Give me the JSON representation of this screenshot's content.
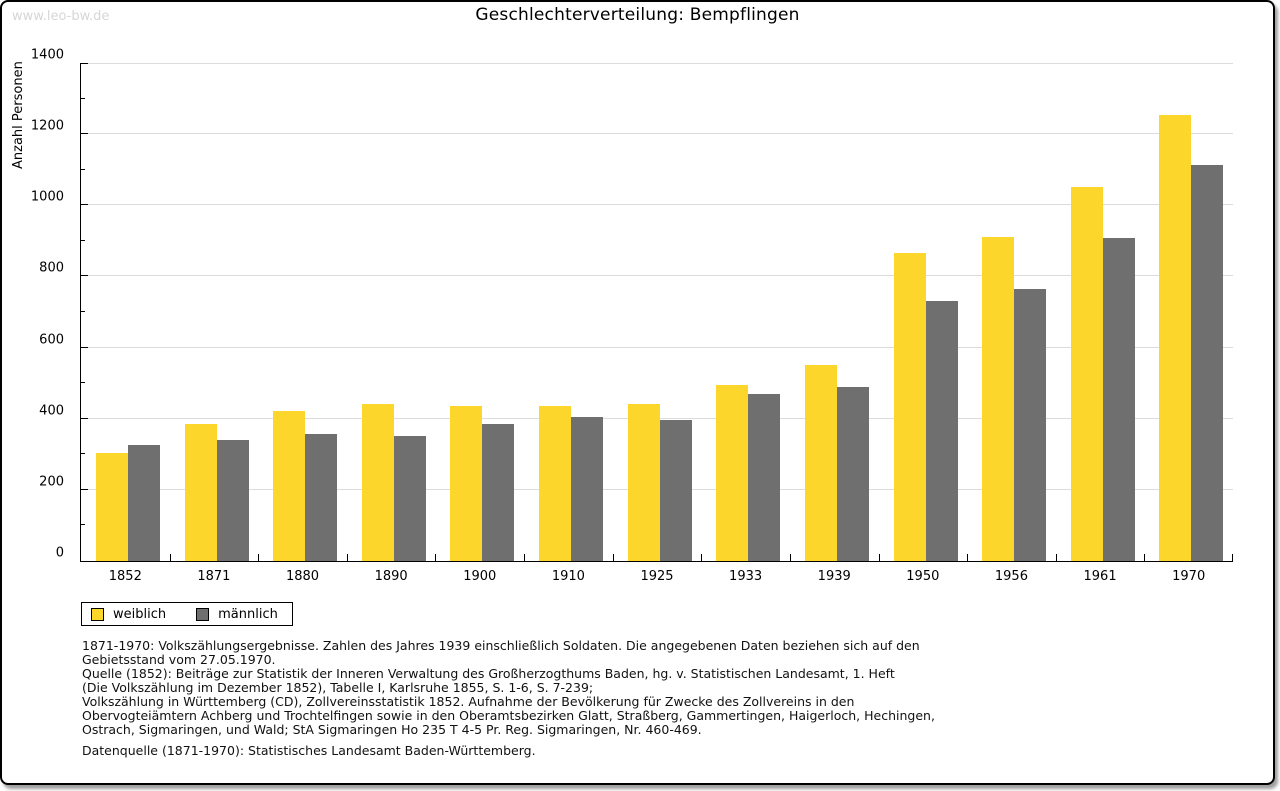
{
  "watermark": "www.leo-bw.de",
  "chart_data": {
    "type": "bar",
    "title": "Geschlechterverteilung: Bempflingen",
    "ylabel": "Anzahl Personen",
    "xlabel": "",
    "ylim": [
      0,
      1400
    ],
    "ytick_step": 200,
    "ytick_minor_step": 100,
    "grid": true,
    "legend_position": "bottom-left",
    "categories": [
      "1852",
      "1871",
      "1880",
      "1890",
      "1900",
      "1910",
      "1925",
      "1933",
      "1939",
      "1950",
      "1956",
      "1961",
      "1970"
    ],
    "series": [
      {
        "name": "weiblich",
        "color": "#fcd62b",
        "values": [
          305,
          385,
          421,
          440,
          435,
          436,
          440,
          495,
          550,
          866,
          912,
          1050,
          1254
        ]
      },
      {
        "name": "männlich",
        "color": "#6f6f6f",
        "values": [
          327,
          339,
          356,
          350,
          386,
          404,
          396,
          470,
          489,
          730,
          766,
          909,
          1114
        ]
      }
    ]
  },
  "footer": {
    "notes": [
      "1871-1970: Volkszählungsergebnisse. Zahlen des Jahres 1939 einschließlich Soldaten. Die angegebenen Daten beziehen sich auf den",
      "Gebietsstand vom 27.05.1970.",
      "Quelle (1852): Beiträge zur Statistik der Inneren Verwaltung des Großherzogthums Baden, hg. v. Statistischen Landesamt, 1. Heft",
      "(Die Volkszählung im Dezember 1852), Tabelle I, Karlsruhe 1855, S. 1-6, S. 7-239;",
      "Volkszählung in Württemberg (CD), Zollvereinsstatistik 1852. Aufnahme der Bevölkerung für Zwecke des Zollvereins in den",
      "Obervogteiämtern Achberg und Trochtelfingen sowie in den Oberamtsbezirken Glatt, Straßberg, Gammertingen, Haigerloch, Hechingen,",
      "Ostrach, Sigmaringen, und Wald; StA Sigmaringen Ho 235 T 4-5 Pr. Reg. Sigmaringen, Nr. 460-469."
    ],
    "datasource": "Datenquelle (1871-1970): Statistisches Landesamt Baden-Württemberg."
  },
  "colors": {
    "weiblich": "#fcd62b",
    "männlich": "#6f6f6f",
    "gridline": "#dcdcdc",
    "watermark": "#d6d6d6",
    "axis": "#000000"
  }
}
